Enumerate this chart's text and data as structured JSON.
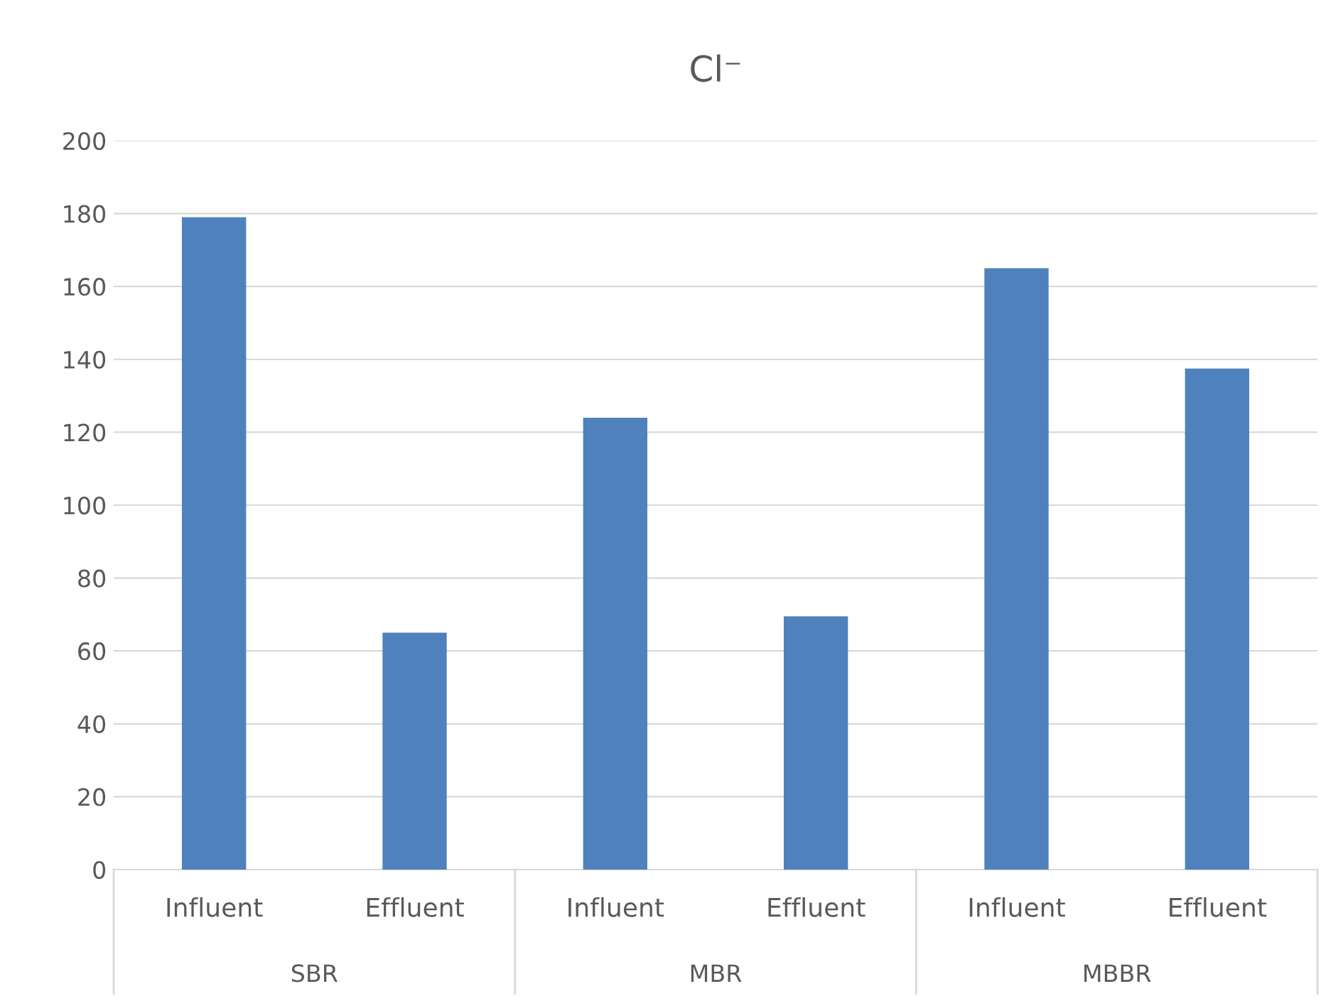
{
  "chart_data": {
    "type": "bar",
    "title": "Cl⁻",
    "categories": [
      "Influent",
      "Effluent",
      "Influent",
      "Effluent",
      "Influent",
      "Effluent"
    ],
    "values": [
      179,
      65,
      124,
      69.5,
      165,
      137.5
    ],
    "color": "#4f81bd",
    "ylim": [
      0,
      200
    ],
    "yticks": [
      0,
      20,
      40,
      60,
      80,
      100,
      120,
      140,
      160,
      180,
      200
    ],
    "grid": "y",
    "annotations": [
      "SBR",
      "MBR",
      "MBBR"
    ]
  }
}
